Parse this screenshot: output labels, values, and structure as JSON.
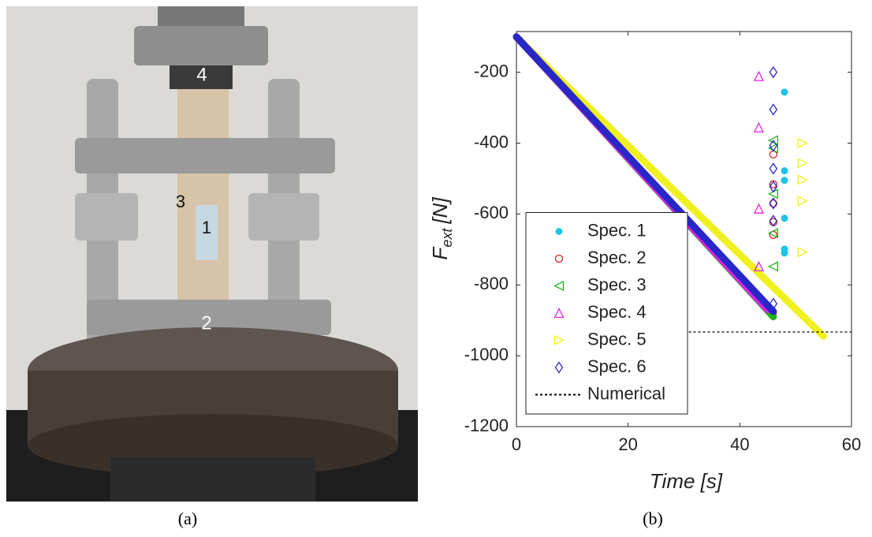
{
  "photo": {
    "labels": [
      "4",
      "3",
      "1",
      "2"
    ],
    "caption": "(a)"
  },
  "chart_data": {
    "type": "scatter",
    "caption": "(b)",
    "xlabel": "Time [s]",
    "ylabel": "F",
    "ylabel_subscript": "ext",
    "ylabel_unit": "[N]",
    "xlim": [
      0,
      60
    ],
    "xticks": [
      0,
      20,
      40,
      60
    ],
    "ylim": [
      -1200,
      -85
    ],
    "yticks": [
      -1200,
      -1000,
      -800,
      -600,
      -400,
      -200
    ],
    "legend": "lower left",
    "series": [
      {
        "name": "Spec. 1",
        "color": "#1ec3e6",
        "marker": "filled-circle",
        "x": [
          0,
          46
        ],
        "values": [
          -100,
          -880
        ],
        "scatter_x": [
          48,
          48,
          48,
          48,
          48,
          48
        ],
        "scatter_values": [
          -256,
          -478,
          -505,
          -612,
          -699,
          -710
        ]
      },
      {
        "name": "Spec. 2",
        "color": "#e01e1e",
        "marker": "circle",
        "x": [
          0,
          46
        ],
        "values": [
          -100,
          -880
        ],
        "scatter_x": [
          46,
          46,
          46,
          46,
          46
        ],
        "scatter_values": [
          -432,
          -516,
          -570,
          -623,
          -659
        ]
      },
      {
        "name": "Spec. 3",
        "color": "#1eb41e",
        "marker": "triangle-left",
        "x": [
          0,
          46
        ],
        "values": [
          -100,
          -890
        ],
        "scatter_x": [
          46,
          46,
          46,
          46,
          46
        ],
        "scatter_values": [
          -392,
          -414,
          -543,
          -654,
          -748
        ]
      },
      {
        "name": "Spec. 4",
        "color": "#e61ee6",
        "marker": "triangle-up",
        "x": [
          0,
          45
        ],
        "values": [
          -100,
          -870
        ],
        "scatter_x": [
          43.4,
          43.4,
          43.4,
          43.4
        ],
        "scatter_values": [
          -211,
          -356,
          -585,
          -748
        ]
      },
      {
        "name": "Spec. 5",
        "color": "#f0f01e",
        "marker": "triangle-right",
        "x": [
          0,
          55
        ],
        "values": [
          -100,
          -945
        ],
        "scatter_x": [
          51.2,
          51.2,
          51.2,
          51.2,
          51.2
        ],
        "scatter_values": [
          -400,
          -456,
          -503,
          -563,
          -708
        ]
      },
      {
        "name": "Spec. 6",
        "color": "#2828c8",
        "marker": "diamond",
        "x": [
          0,
          46
        ],
        "values": [
          -100,
          -875
        ],
        "scatter_x": [
          46,
          46,
          46,
          46,
          46,
          46,
          46,
          46
        ],
        "scatter_values": [
          -200,
          -305,
          -407,
          -472,
          -523,
          -570,
          -619,
          -853
        ]
      },
      {
        "name": "Numerical",
        "color": "#000000",
        "marker": "dashed-line",
        "x": [
          30,
          60
        ],
        "values": [
          -933,
          -933
        ]
      }
    ]
  }
}
